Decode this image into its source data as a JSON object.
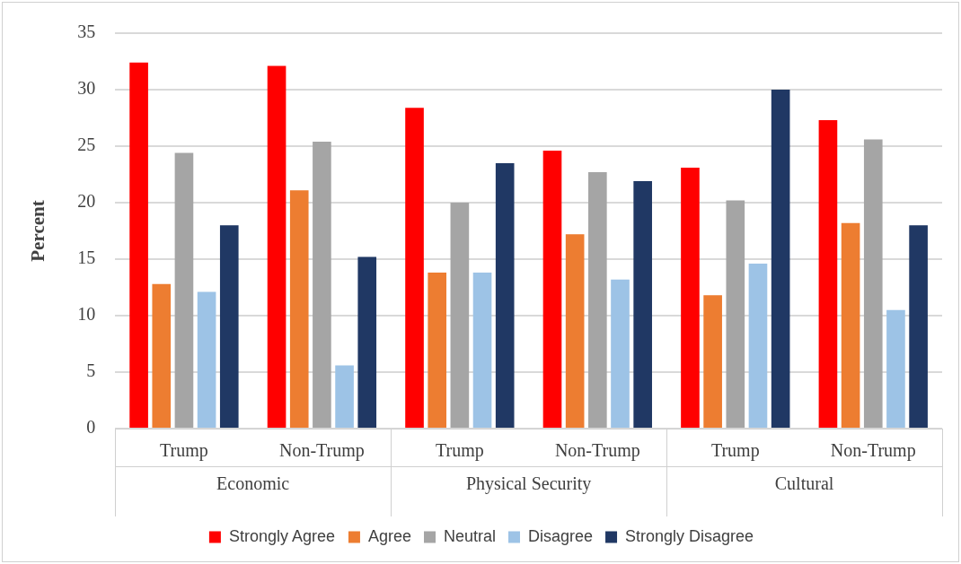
{
  "chart_data": {
    "type": "bar",
    "ylabel": "Percent",
    "categories": [
      "Trump",
      "Non-Trump",
      "Trump",
      "Non-Trump",
      "Trump",
      "Non-Trump"
    ],
    "annotations": [
      "Economic",
      "Physical Security",
      "Cultural"
    ],
    "series": [
      {
        "name": "Strongly Agree",
        "color": "#ff0000",
        "values": [
          32.4,
          32.1,
          28.4,
          24.6,
          23.1,
          27.3
        ]
      },
      {
        "name": "Agree",
        "color": "#ed7d31",
        "values": [
          12.8,
          21.1,
          13.8,
          17.2,
          11.8,
          18.2
        ]
      },
      {
        "name": "Neutral",
        "color": "#a5a5a5",
        "values": [
          24.4,
          25.4,
          20.0,
          22.7,
          20.2,
          25.6
        ]
      },
      {
        "name": "Disagree",
        "color": "#9dc3e6",
        "values": [
          12.1,
          5.6,
          13.8,
          13.2,
          14.6,
          10.5
        ]
      },
      {
        "name": "Strongly Disagree",
        "color": "#203864",
        "values": [
          18.0,
          15.2,
          23.5,
          21.9,
          30.0,
          18.0
        ]
      }
    ],
    "ylim": [
      0,
      35
    ],
    "yticks": [
      0,
      5,
      10,
      15,
      20,
      25,
      30,
      35
    ],
    "grid": "y",
    "legend": "bottom"
  }
}
